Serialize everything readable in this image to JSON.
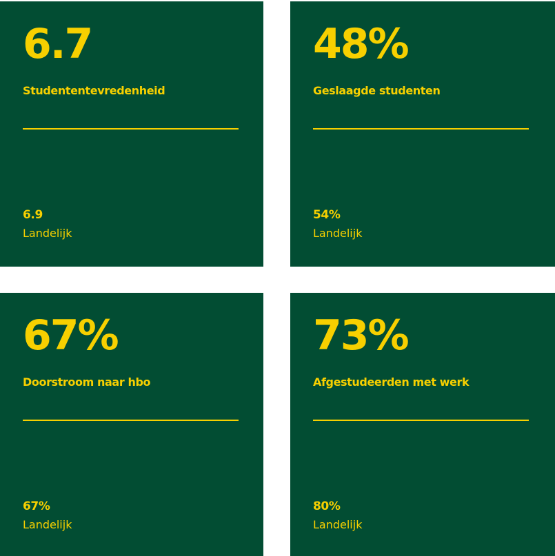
{
  "colors": {
    "card_background": "#024d33",
    "accent": "#f7d000",
    "page_background": "#ffffff"
  },
  "stats": [
    {
      "value": "6.7",
      "label": "Studententevredenheid",
      "national_value": "6.9",
      "national_label": "Landelijk"
    },
    {
      "value": "48%",
      "label": "Geslaagde studenten",
      "national_value": "54%",
      "national_label": "Landelijk"
    },
    {
      "value": "67%",
      "label": "Doorstroom naar hbo",
      "national_value": "67%",
      "national_label": "Landelijk"
    },
    {
      "value": "73%",
      "label": "Afgestudeerden met werk",
      "national_value": "80%",
      "national_label": "Landelijk"
    }
  ]
}
